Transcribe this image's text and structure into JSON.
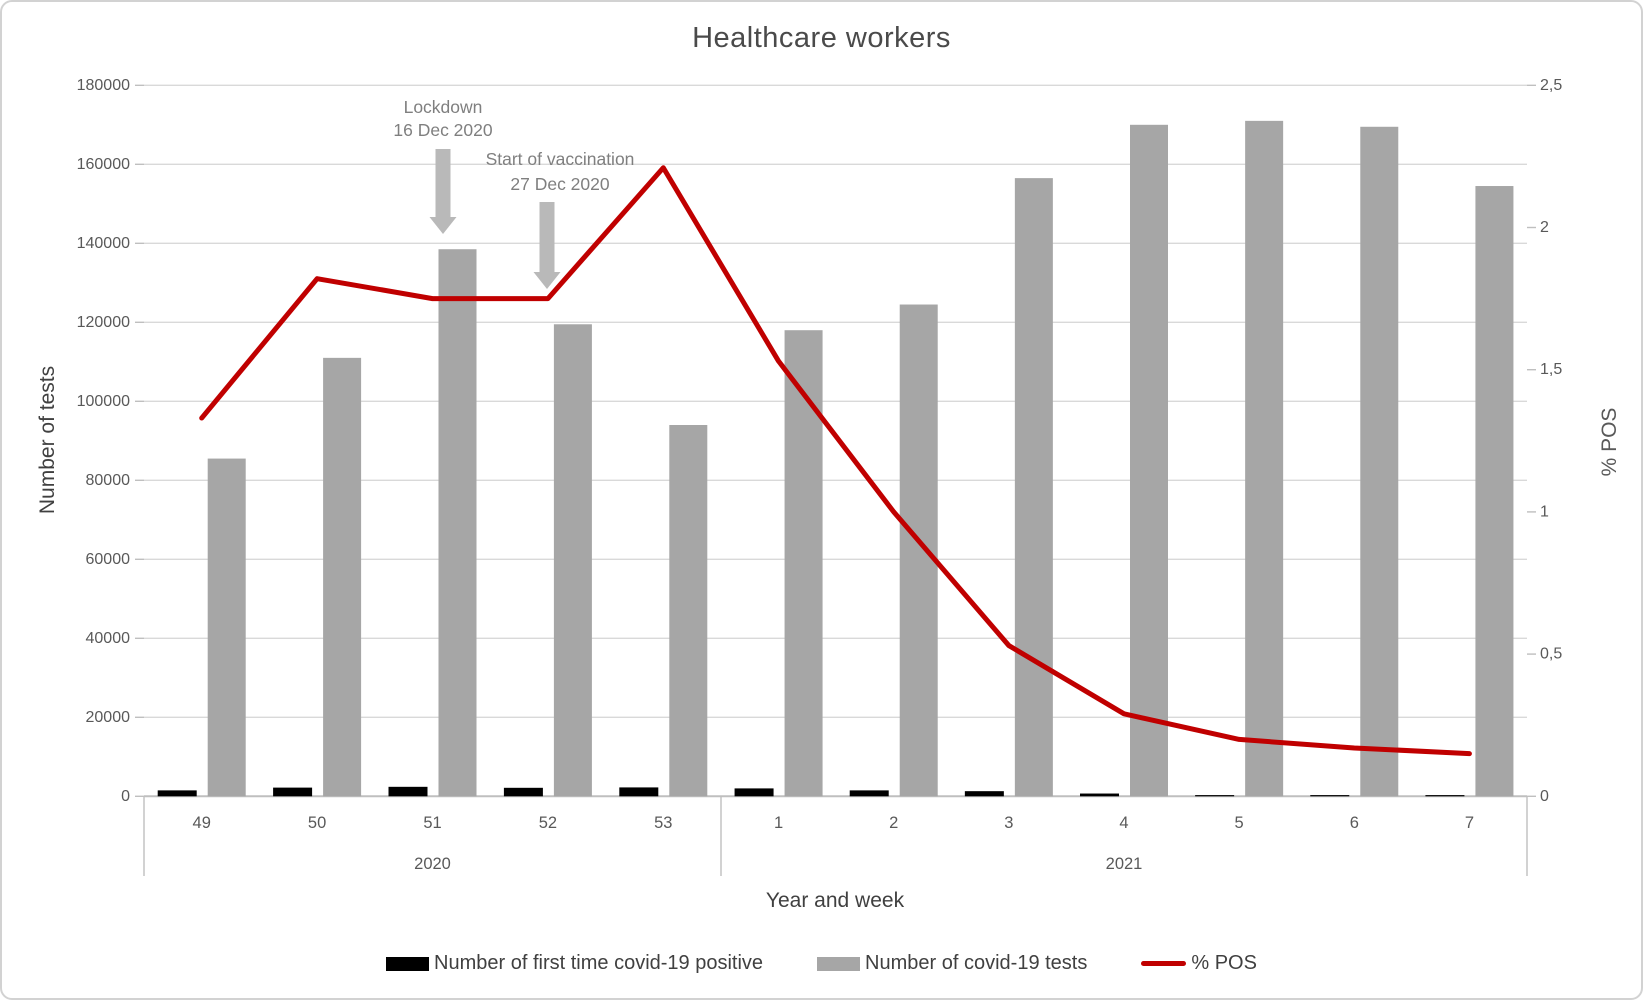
{
  "chart_data": {
    "type": "combo (clustered bar + line, dual axis)",
    "title": "Healthcare workers",
    "xlabel": "Year and week",
    "categories": [
      "49",
      "50",
      "51",
      "52",
      "53",
      "1",
      "2",
      "3",
      "4",
      "5",
      "6",
      "7"
    ],
    "category_groups": [
      {
        "label": "2020",
        "count": 5
      },
      {
        "label": "2021",
        "count": 7
      }
    ],
    "left_axis": {
      "label": "Number of tests",
      "min": 0,
      "max": 180000,
      "step": 20000
    },
    "right_axis": {
      "label": "% POS",
      "min": 0,
      "max": 2.5,
      "step": 0.5,
      "tick_labels": [
        "0",
        "0,5",
        "1",
        "1,5",
        "2",
        "2,5"
      ]
    },
    "grid": "horizontal",
    "legend_position": "bottom",
    "series": [
      {
        "name": "Number of first time covid-19 positive",
        "type": "bar",
        "axis": "left",
        "color": "#000000",
        "values": [
          1500,
          2200,
          2400,
          2150,
          2250,
          2000,
          1500,
          1300,
          700,
          250,
          150,
          150
        ]
      },
      {
        "name": "Number of covid-19 tests",
        "type": "bar",
        "axis": "left",
        "color": "#a6a6a6",
        "values": [
          85500,
          111000,
          138500,
          119500,
          94000,
          118000,
          124500,
          156500,
          170000,
          171000,
          169500,
          154500
        ]
      },
      {
        "name": "% POS",
        "type": "line",
        "axis": "right",
        "color": "#c00000",
        "values": [
          1.33,
          1.82,
          1.75,
          1.75,
          2.21,
          1.53,
          1.0,
          0.53,
          0.29,
          0.2,
          0.17,
          0.15
        ]
      }
    ],
    "annotations": [
      {
        "lines": [
          "Lockdown",
          "16 Dec 2020"
        ]
      },
      {
        "lines": [
          "Start of vaccination",
          "27 Dec 2020"
        ]
      }
    ]
  },
  "style": {
    "grid_color": "#d9d9d9",
    "axis_color": "#bfbfbf",
    "tick_text_color": "#595959",
    "label_text_color": "#404040",
    "annotation_text_color": "#7f7f7f",
    "arrow_color": "#b9b9b9",
    "frame_border_color": "#d2d2d2"
  }
}
